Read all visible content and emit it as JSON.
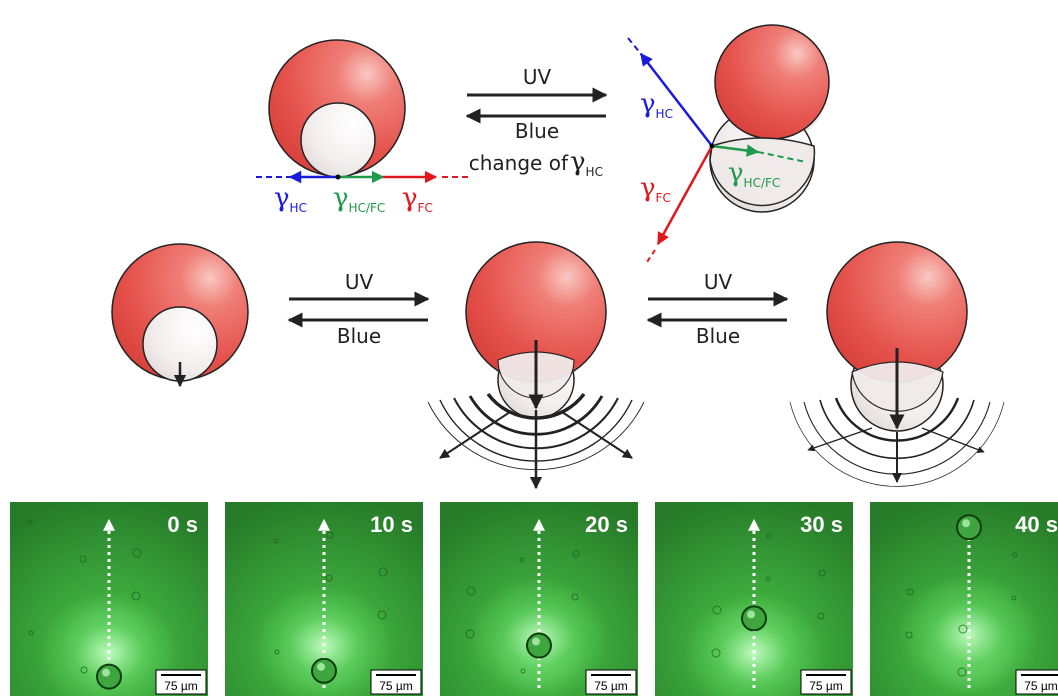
{
  "top": {
    "forward_label": "UV",
    "backward_label": "Blue",
    "note_prefix": "change of ",
    "note_symbol": "γ",
    "note_subscript": "HC"
  },
  "tension_labels": {
    "hc_symbol": "γ",
    "hc_sub": "HC",
    "hcfc_symbol": "γ",
    "hcfc_sub": "HC/FC",
    "fc_symbol": "γ",
    "fc_sub": "FC"
  },
  "middle": {
    "arrow1_forward": "UV",
    "arrow1_backward": "Blue",
    "arrow2_forward": "UV",
    "arrow2_backward": "Blue"
  },
  "micrographs": [
    {
      "time": "0 s",
      "scale": "75 µm"
    },
    {
      "time": "10 s",
      "scale": "75 µm"
    },
    {
      "time": "20 s",
      "scale": "75 µm"
    },
    {
      "time": "30 s",
      "scale": "75 µm"
    },
    {
      "time": "40 s",
      "scale": "75 µm"
    }
  ],
  "colors": {
    "hc_droplet": "#e5524c",
    "fc_droplet": "#f1ecec",
    "gamma_hc": "#1a1adc",
    "gamma_hcfc": "#1f9a4a",
    "gamma_fc": "#e0181e",
    "micrograph_bg": "#2d8a2d"
  }
}
